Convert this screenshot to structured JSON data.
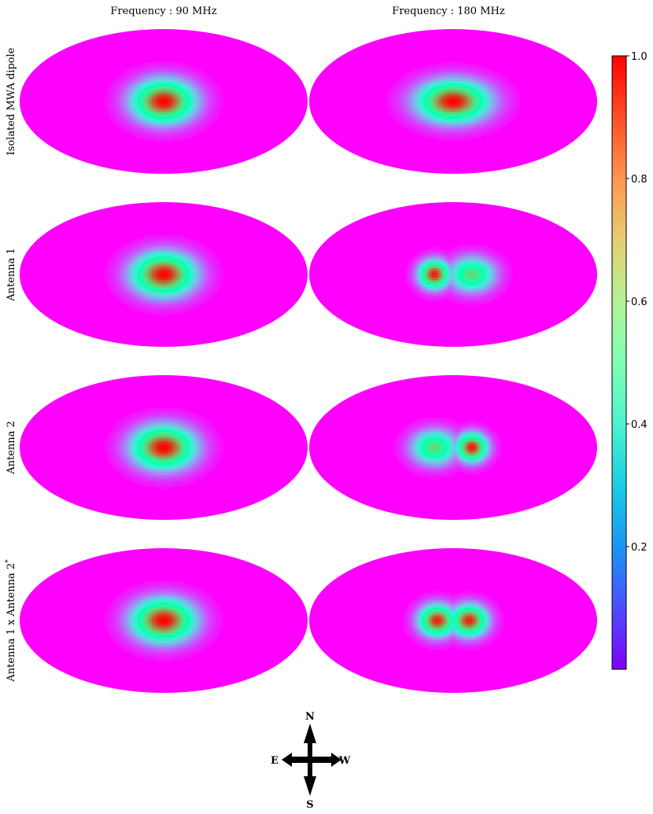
{
  "chart_data": {
    "type": "heatmap",
    "projection": "mollweide",
    "columns": [
      {
        "title": "Frequency : 90 MHz",
        "frequency_mhz": 90
      },
      {
        "title": "Frequency : 180 MHz",
        "frequency_mhz": 180
      }
    ],
    "rows": [
      {
        "label": "Isolated MWA dipole"
      },
      {
        "label": "Antenna 1"
      },
      {
        "label": "Antenna 2"
      },
      {
        "label": "Antenna 1 x Antenna 2",
        "label_sup": "*"
      }
    ],
    "beams": [
      [
        {
          "peak": 1.0,
          "lobes": [
            {
              "dx": 0,
              "dy": 0,
              "amp": 1.0,
              "sx": 0.22,
              "sy": 0.3
            }
          ]
        },
        {
          "peak": 1.0,
          "lobes": [
            {
              "dx": 0,
              "dy": 0,
              "amp": 1.0,
              "sx": 0.25,
              "sy": 0.29
            }
          ]
        }
      ],
      [
        {
          "peak": 1.0,
          "lobes": [
            {
              "dx": 0,
              "dy": 0,
              "amp": 1.0,
              "sx": 0.22,
              "sy": 0.3
            }
          ]
        },
        {
          "peak": 1.0,
          "lobes": [
            {
              "dx": -0.13,
              "dy": 0,
              "amp": 0.97,
              "sx": 0.11,
              "sy": 0.2
            },
            {
              "dx": 0.13,
              "dy": 0,
              "amp": 0.68,
              "sx": 0.16,
              "sy": 0.24
            }
          ]
        }
      ],
      [
        {
          "peak": 1.0,
          "lobes": [
            {
              "dx": 0,
              "dy": 0,
              "amp": 1.0,
              "sx": 0.22,
              "sy": 0.3
            }
          ]
        },
        {
          "peak": 1.0,
          "lobes": [
            {
              "dx": 0.13,
              "dy": 0,
              "amp": 0.97,
              "sx": 0.11,
              "sy": 0.2
            },
            {
              "dx": -0.13,
              "dy": 0,
              "amp": 0.68,
              "sx": 0.16,
              "sy": 0.24
            }
          ]
        }
      ],
      [
        {
          "peak": 1.0,
          "lobes": [
            {
              "dx": 0,
              "dy": 0,
              "amp": 1.0,
              "sx": 0.22,
              "sy": 0.3
            }
          ]
        },
        {
          "peak": 1.0,
          "lobes": [
            {
              "dx": -0.11,
              "dy": 0,
              "amp": 0.96,
              "sx": 0.13,
              "sy": 0.22
            },
            {
              "dx": 0.11,
              "dy": 0,
              "amp": 0.96,
              "sx": 0.13,
              "sy": 0.22
            }
          ]
        }
      ]
    ],
    "colorbar": {
      "colormap": "rainbow",
      "range": [
        0,
        1.0
      ],
      "ticks": [
        {
          "value": 0.2,
          "label": "0.2"
        },
        {
          "value": 0.4,
          "label": "0.4"
        },
        {
          "value": 0.6,
          "label": "0.6"
        },
        {
          "value": 0.8,
          "label": "0.8"
        },
        {
          "value": 1.0,
          "label": "1.0"
        }
      ]
    },
    "compass": {
      "north": "N",
      "south": "S",
      "east": "E",
      "west": "W"
    }
  }
}
